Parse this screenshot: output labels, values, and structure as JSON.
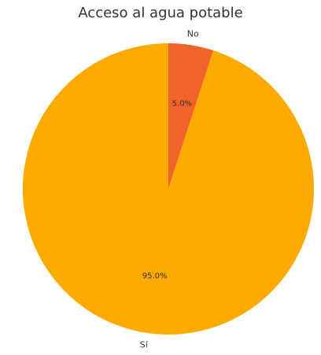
{
  "chart_data": {
    "type": "pie",
    "title": "Acceso al agua potable",
    "categories": [
      "No",
      "Sí"
    ],
    "values": [
      5.0,
      95.0
    ],
    "labels": [
      "5.0%",
      "95.0%"
    ],
    "colors": [
      "#f0642a",
      "#ffaa00"
    ],
    "start_angle": "top, clockwise"
  }
}
